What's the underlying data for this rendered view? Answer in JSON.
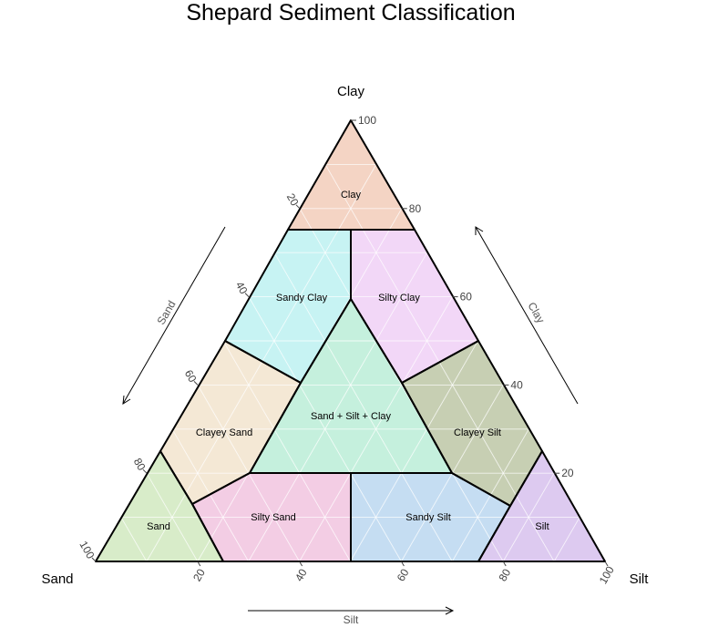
{
  "title": "Shepard Sediment Classification",
  "corners": {
    "top": "Clay",
    "left": "Sand",
    "right": "Silt"
  },
  "axes": {
    "bottom": {
      "label": "Silt",
      "ticks": [
        "20",
        "40",
        "60",
        "80",
        "100"
      ]
    },
    "left": {
      "label": "Sand",
      "ticks": [
        "20",
        "40",
        "60",
        "80",
        "100"
      ]
    },
    "right": {
      "label": "Clay",
      "ticks": [
        "20",
        "40",
        "60",
        "80",
        "100"
      ]
    }
  },
  "colors": {
    "grid": "#ffffff",
    "border": "#000000"
  },
  "regions": [
    {
      "name": "Clay",
      "color": "#f4d4c4",
      "verts": [
        [
          0,
          0,
          100
        ],
        [
          25,
          0,
          75
        ],
        [
          0,
          25,
          75
        ]
      ]
    },
    {
      "name": "Sandy Clay",
      "color": "#c7f3f3",
      "verts": [
        [
          25,
          0,
          75
        ],
        [
          50,
          0,
          50
        ],
        [
          50,
          0,
          50
        ],
        [
          40,
          20,
          40
        ],
        [
          20,
          20,
          60
        ],
        [
          0,
          50,
          50
        ],
        [
          0,
          25,
          75
        ]
      ]
    },
    {
      "name": "Silty Clay",
      "color": "#f2d7f7",
      "verts": [
        [
          25,
          0,
          75
        ],
        [
          50,
          0,
          50
        ],
        [
          20,
          40,
          40
        ],
        [
          20,
          20,
          60
        ],
        [
          50,
          0,
          50
        ],
        [
          0,
          50,
          50
        ]
      ]
    },
    {
      "name": "Clayey Sand",
      "color": "#f4e8d5",
      "verts": [
        [
          50,
          0,
          50
        ],
        [
          75,
          0,
          25
        ],
        [
          60,
          20,
          20
        ],
        [
          40,
          20,
          40
        ]
      ]
    },
    {
      "name": "Sand + Silt + Clay",
      "color": "#c5f0dd",
      "verts": [
        [
          20,
          20,
          60
        ],
        [
          60,
          20,
          20
        ],
        [
          20,
          60,
          20
        ]
      ]
    },
    {
      "name": "Clayey Silt",
      "color": "#c7cfb3",
      "verts": [
        [
          0,
          50,
          50
        ],
        [
          20,
          40,
          40
        ],
        [
          20,
          60,
          20
        ],
        [
          0,
          75,
          25
        ]
      ]
    },
    {
      "name": "Sand",
      "color": "#d8ecc9",
      "verts": [
        [
          100,
          0,
          0
        ],
        [
          75,
          0,
          25
        ],
        [
          75,
          25,
          0
        ]
      ]
    },
    {
      "name": "Silty Sand",
      "color": "#f3cde4",
      "verts": [
        [
          75,
          25,
          0
        ],
        [
          50,
          50,
          0
        ],
        [
          50,
          30,
          20
        ],
        [
          60,
          20,
          20
        ]
      ]
    },
    {
      "name": "Sandy Silt",
      "color": "#c5ddf2",
      "verts": [
        [
          50,
          50,
          0
        ],
        [
          25,
          75,
          0
        ],
        [
          20,
          60,
          20
        ],
        [
          50,
          30,
          20
        ]
      ]
    },
    {
      "name": "Silt",
      "color": "#ddcaf0",
      "verts": [
        [
          25,
          75,
          0
        ],
        [
          0,
          100,
          0
        ],
        [
          0,
          75,
          25
        ]
      ]
    }
  ]
}
